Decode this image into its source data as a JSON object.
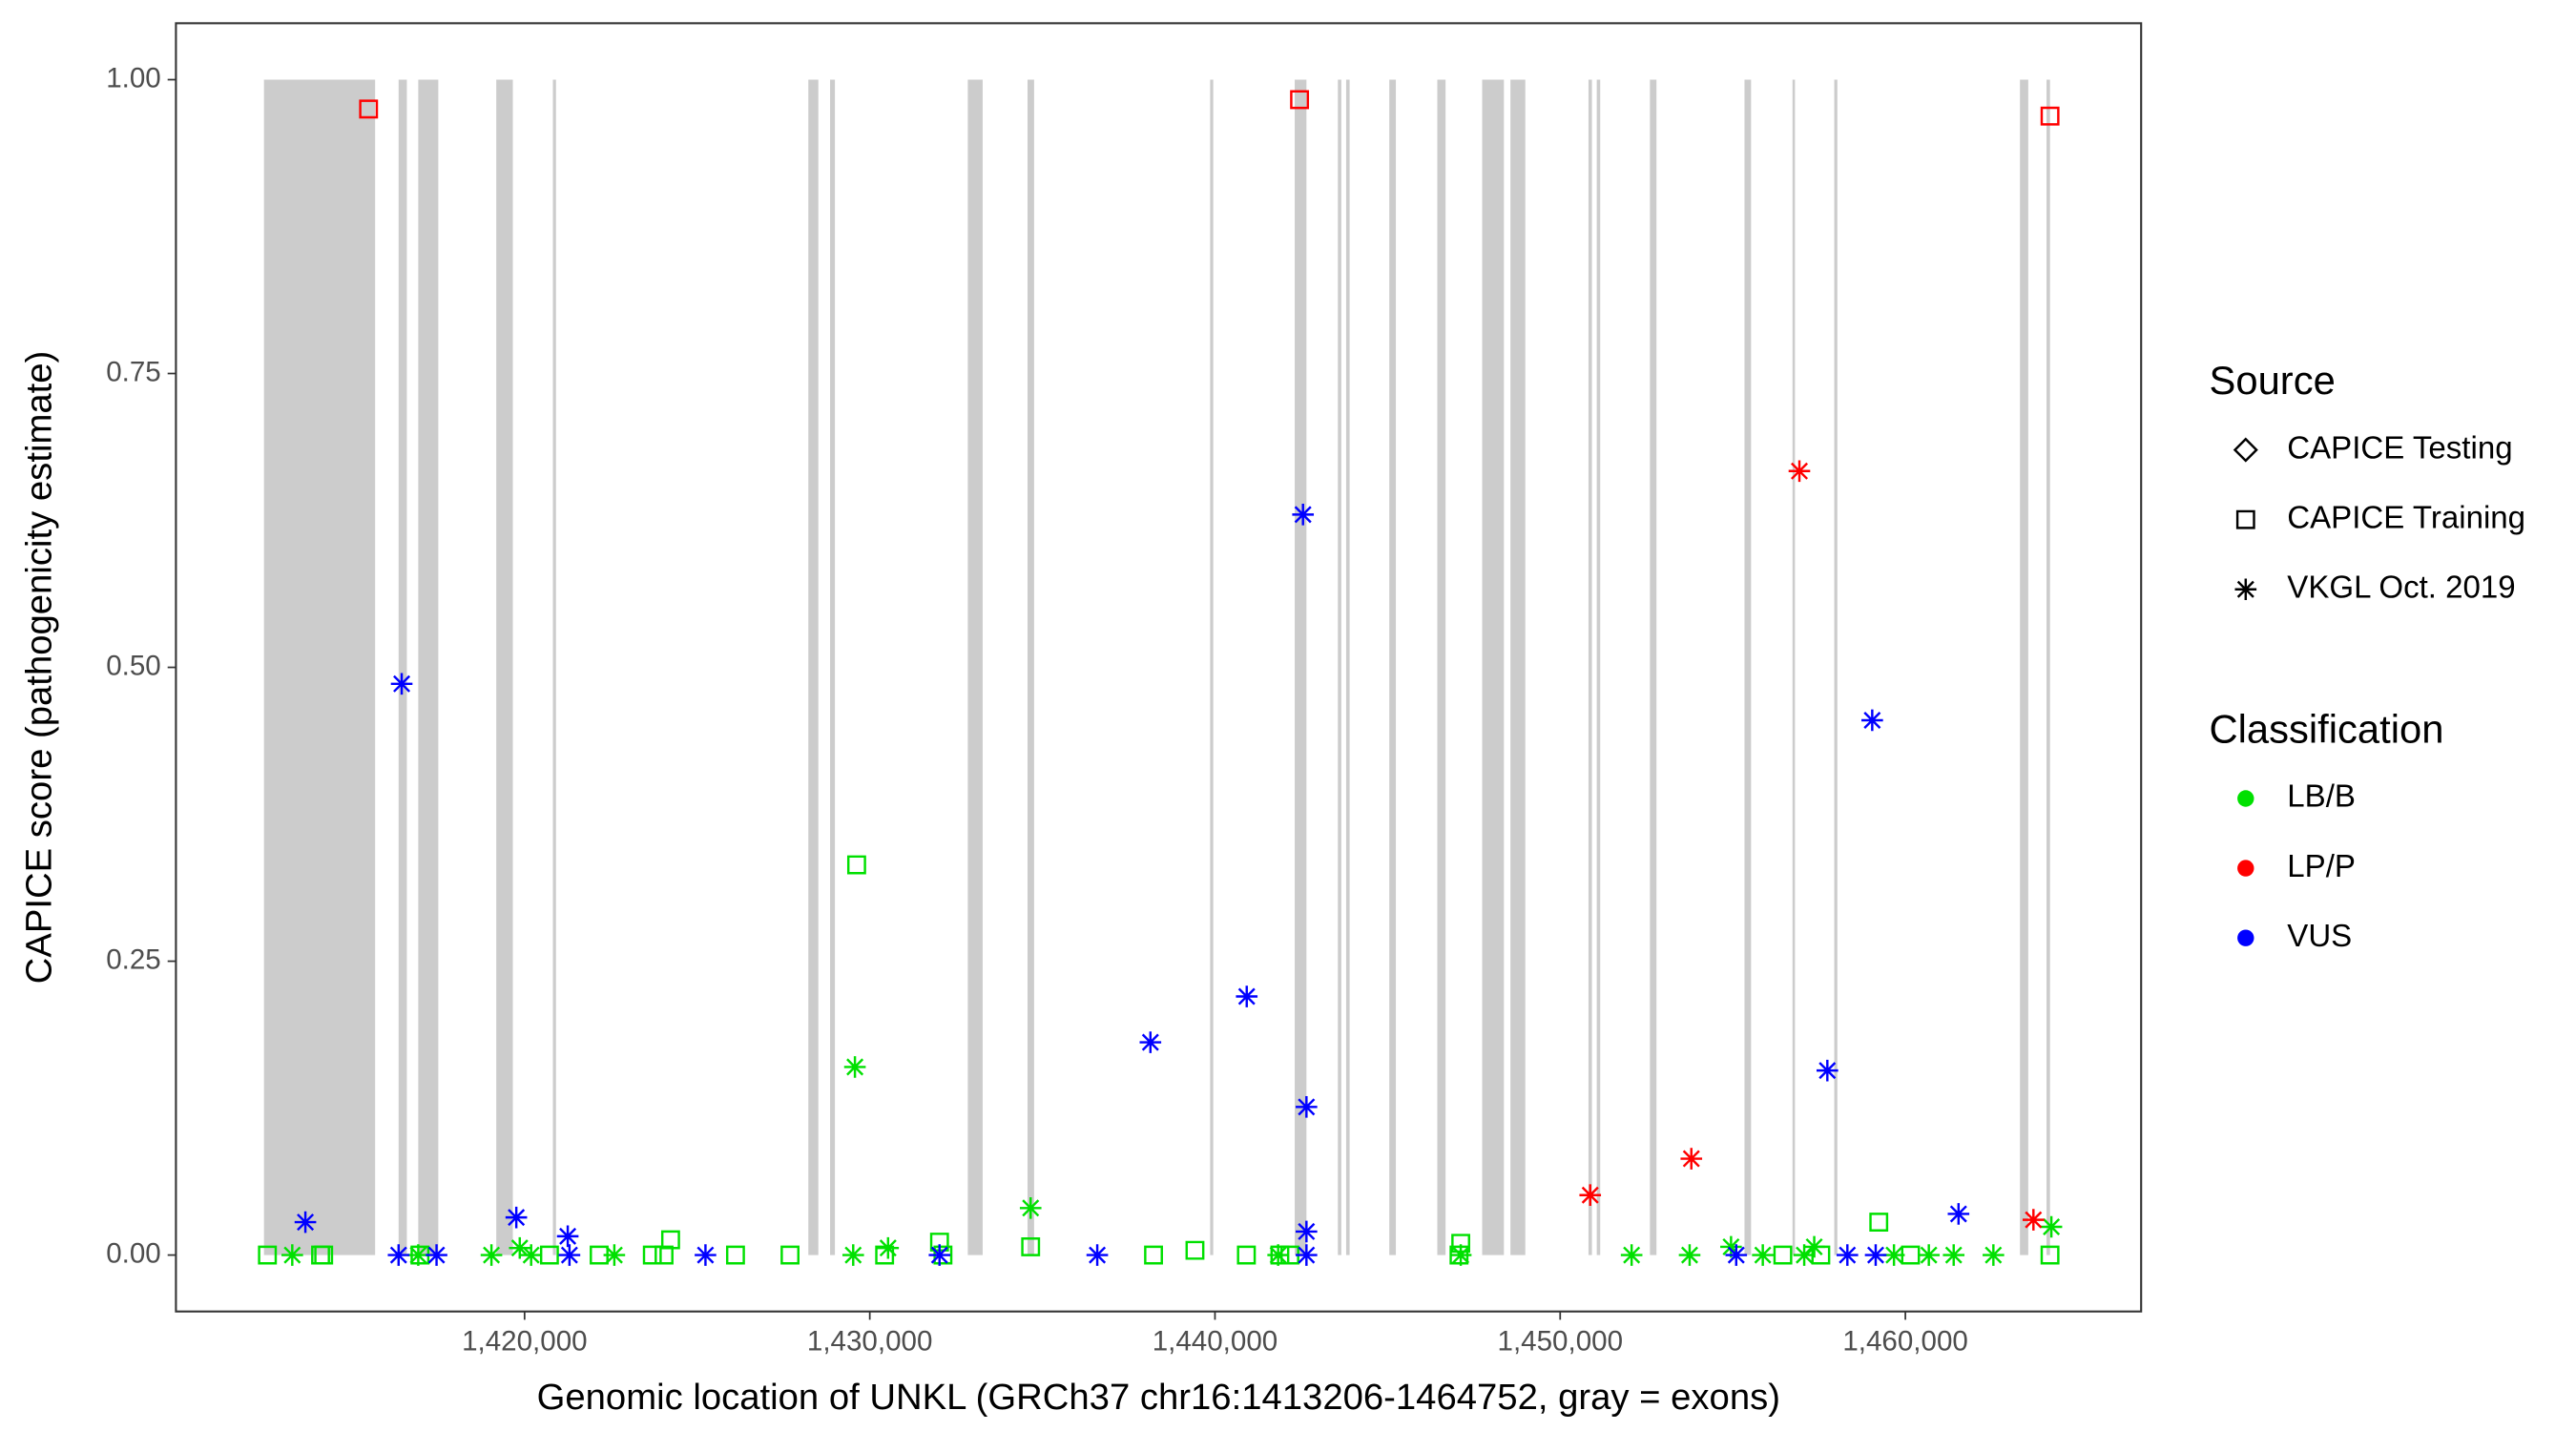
{
  "chart_data": {
    "type": "scatter",
    "xlabel": "Genomic location of UNKL (GRCh37 chr16:1413206-1464752, gray = exons)",
    "ylabel": "CAPICE score (pathogenicity estimate)",
    "xlim": [
      1409900,
      1466830
    ],
    "ylim": [
      -0.048,
      1.048
    ],
    "xticks": [
      {
        "value": 1420000,
        "label": "1,420,000"
      },
      {
        "value": 1430000,
        "label": "1,430,000"
      },
      {
        "value": 1440000,
        "label": "1,440,000"
      },
      {
        "value": 1450000,
        "label": "1,450,000"
      },
      {
        "value": 1460000,
        "label": "1,460,000"
      }
    ],
    "yticks": [
      {
        "value": 0,
        "label": "0.00"
      },
      {
        "value": 0.25,
        "label": "0.25"
      },
      {
        "value": 0.5,
        "label": "0.50"
      },
      {
        "value": 0.75,
        "label": "0.75"
      },
      {
        "value": 1,
        "label": "1.00"
      }
    ],
    "exons": {
      "color": "#cccccc",
      "ranges": [
        [
          1412450,
          1415670
        ],
        [
          1416350,
          1416590
        ],
        [
          1416920,
          1417500
        ],
        [
          1419180,
          1419660
        ],
        [
          1420820,
          1420910
        ],
        [
          1428220,
          1428510
        ],
        [
          1428850,
          1428990
        ],
        [
          1432840,
          1433270
        ],
        [
          1434570,
          1434760
        ],
        [
          1439860,
          1439950
        ],
        [
          1442310,
          1442650
        ],
        [
          1443560,
          1443660
        ],
        [
          1443800,
          1443900
        ],
        [
          1445050,
          1445240
        ],
        [
          1446440,
          1446680
        ],
        [
          1447740,
          1448370
        ],
        [
          1448560,
          1448990
        ],
        [
          1450820,
          1450920
        ],
        [
          1451060,
          1451160
        ],
        [
          1452600,
          1452790
        ],
        [
          1455340,
          1455530
        ],
        [
          1456730,
          1456780
        ],
        [
          1457940,
          1458030
        ],
        [
          1463320,
          1463560
        ],
        [
          1464090,
          1464190
        ]
      ]
    },
    "legends": {
      "source": {
        "title": "Source",
        "items": [
          {
            "name": "CAPICE Testing",
            "shape": "diamond"
          },
          {
            "name": "CAPICE Training",
            "shape": "square"
          },
          {
            "name": "VKGL Oct. 2019",
            "shape": "asterisk"
          }
        ]
      },
      "classification": {
        "title": "Classification",
        "items": [
          {
            "name": "LB/B",
            "color": "#00e000"
          },
          {
            "name": "LP/P",
            "color": "#ff0000"
          },
          {
            "name": "VUS",
            "color": "#0000ff"
          }
        ]
      }
    },
    "series": [
      {
        "source": "CAPICE Training",
        "classification": "LB/B",
        "x": [
          1429620,
          1459230,
          1434660,
          1424230,
          1432020,
          1447120,
          1439420,
          1412550,
          1414090,
          1414180,
          1416970,
          1420720,
          1422160,
          1423700,
          1424040,
          1426110,
          1427690,
          1430430,
          1432120,
          1438220,
          1440910,
          1441880,
          1442170,
          1447070,
          1456450,
          1457550,
          1460150,
          1464190
        ],
        "y": [
          0.332,
          0.028,
          0.007,
          0.013,
          0.011,
          0.01,
          0.004,
          0,
          0,
          0,
          0,
          0,
          0,
          0,
          0,
          0,
          0,
          0,
          0,
          0,
          0,
          0,
          0,
          0,
          0,
          0,
          0,
          0
        ]
      },
      {
        "source": "VKGL Oct. 2019",
        "classification": "LB/B",
        "x": [
          1429570,
          1434660,
          1464230,
          1430530,
          1457360,
          1454950,
          1419860,
          1413270,
          1416920,
          1419040,
          1420190,
          1422600,
          1429520,
          1441830,
          1447120,
          1452070,
          1453750,
          1455870,
          1457070,
          1459670,
          1460680,
          1461400,
          1462550
        ],
        "y": [
          0.16,
          0.04,
          0.024,
          0.006,
          0.007,
          0.007,
          0.006,
          0,
          0,
          0,
          0,
          0,
          0,
          0,
          0,
          0,
          0,
          0,
          0,
          0,
          0,
          0,
          0
        ]
      },
      {
        "source": "CAPICE Training",
        "classification": "LP/P",
        "x": [
          1415480,
          1442450,
          1464190
        ],
        "y": [
          0.975,
          0.983,
          0.969
        ]
      },
      {
        "source": "VKGL Oct. 2019",
        "classification": "LP/P",
        "x": [
          1456930,
          1450870,
          1453800,
          1463710
        ],
        "y": [
          0.667,
          0.051,
          0.082,
          0.03
        ]
      },
      {
        "source": "VKGL Oct. 2019",
        "classification": "VUS",
        "x": [
          1416440,
          1442550,
          1459040,
          1438130,
          1440920,
          1442650,
          1457740,
          1413650,
          1419760,
          1421250,
          1461540,
          1442650,
          1416350,
          1417450,
          1421300,
          1425240,
          1432020,
          1436590,
          1442650,
          1455100,
          1458320,
          1459140
        ],
        "y": [
          0.486,
          0.63,
          0.455,
          0.181,
          0.22,
          0.126,
          0.157,
          0.028,
          0.032,
          0.016,
          0.035,
          0.02,
          0,
          0,
          0,
          0,
          0,
          0,
          0,
          0,
          0,
          0
        ]
      }
    ]
  }
}
